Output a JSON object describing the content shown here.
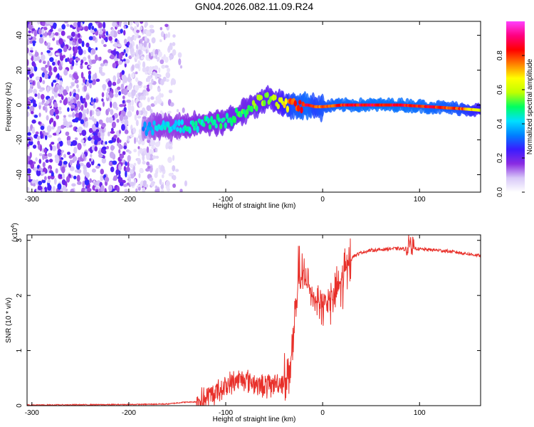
{
  "figure": {
    "title": "GN04.2026.082.11.09.R24"
  },
  "chart_data": [
    {
      "type": "heatmap",
      "xlabel": "Height of straight line (km)",
      "ylabel": "Frequency (Hz)",
      "xlim": [
        -305,
        163
      ],
      "ylim": [
        -50,
        48
      ],
      "xticks": [
        -300,
        -200,
        -100,
        0,
        100
      ],
      "xtick_labels": [
        "-300",
        "-200",
        "-100",
        "0",
        "100"
      ],
      "yticks": [
        -40,
        -20,
        0,
        20,
        40
      ],
      "ytick_labels": [
        "-40",
        "-20",
        "0",
        "20",
        "40"
      ],
      "colorbar": {
        "label": "Normalized spectral amplitude",
        "range": [
          0,
          1
        ],
        "ticks": [
          0.0,
          0.2,
          0.4,
          0.6,
          0.8
        ],
        "tick_labels": [
          "0.0",
          "0.2",
          "0.4",
          "0.6",
          "0.8"
        ],
        "colormap": [
          "#ffffff",
          "#d8c8f8",
          "#8a2be2",
          "#3a1cff",
          "#0080ff",
          "#00e0ff",
          "#00ff60",
          "#c0ff00",
          "#ffff00",
          "#ff8000",
          "#ff0000",
          "#ff0080",
          "#ff40ff"
        ]
      },
      "ridge": {
        "x": [
          -185,
          -170,
          -150,
          -130,
          -110,
          -95,
          -80,
          -65,
          -55,
          -45,
          -30,
          -15,
          -8,
          0,
          20,
          50,
          80,
          110,
          140,
          163
        ],
        "freq": [
          -14,
          -12,
          -13,
          -11,
          -10,
          -8,
          -3,
          2,
          4,
          1,
          0,
          0,
          -1,
          -1,
          0,
          0,
          0,
          -1,
          -2,
          -3
        ],
        "amplitude": [
          0.35,
          0.45,
          0.45,
          0.5,
          0.5,
          0.55,
          0.55,
          0.6,
          0.6,
          0.65,
          0.85,
          0.9,
          0.8,
          0.85,
          0.9,
          0.92,
          0.92,
          0.9,
          0.85,
          0.7
        ]
      },
      "noise_region_x": [
        -305,
        -180
      ]
    },
    {
      "type": "line",
      "xlabel": "Height of straight line (km)",
      "ylabel": "SNR (10 * v/v)",
      "yscale_label": "(x10",
      "yscale_exponent": "4",
      "xlim": [
        -305,
        163
      ],
      "ylim": [
        0,
        3.1
      ],
      "xticks": [
        -300,
        -200,
        -100,
        0,
        100
      ],
      "xtick_labels": [
        "-300",
        "-200",
        "-100",
        "0",
        "100"
      ],
      "yticks": [
        0,
        1,
        2,
        3
      ],
      "ytick_labels": [
        "0",
        "1",
        "2",
        "3"
      ],
      "line_color": "#e8302a",
      "series": [
        {
          "name": "SNR",
          "x": [
            -305,
            -200,
            -160,
            -145,
            -130,
            -120,
            -110,
            -100,
            -90,
            -80,
            -70,
            -60,
            -50,
            -40,
            -35,
            -30,
            -25,
            -20,
            -15,
            -10,
            -5,
            0,
            5,
            10,
            15,
            20,
            25,
            30,
            40,
            50,
            60,
            70,
            80,
            85,
            90,
            95,
            100,
            120,
            140,
            163
          ],
          "y": [
            0.01,
            0.02,
            0.03,
            0.06,
            0.07,
            0.12,
            0.25,
            0.35,
            0.45,
            0.5,
            0.4,
            0.35,
            0.4,
            0.45,
            0.6,
            1.2,
            2.2,
            2.3,
            2.2,
            2.0,
            1.9,
            1.8,
            1.9,
            1.95,
            2.1,
            2.3,
            2.5,
            2.7,
            2.78,
            2.82,
            2.83,
            2.85,
            2.85,
            2.84,
            2.95,
            2.86,
            2.84,
            2.82,
            2.78,
            2.72
          ]
        }
      ]
    }
  ]
}
